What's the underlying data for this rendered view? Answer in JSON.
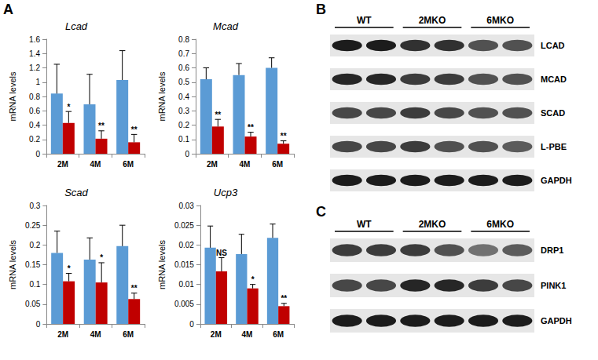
{
  "chart_data": [
    {
      "type": "bar",
      "title": "Lcad",
      "ylabel": "mRNA levels",
      "categories": [
        "2M",
        "4M",
        "6M"
      ],
      "ylim": [
        0,
        1.6
      ],
      "yticks": [
        0,
        0.2,
        0.4,
        0.6,
        0.8,
        1,
        1.2,
        1.4,
        1.6
      ],
      "grid": false,
      "series": [
        {
          "color": "#5b9bd5",
          "values": [
            0.84,
            0.69,
            1.03
          ],
          "errors": [
            0.41,
            0.42,
            0.41
          ]
        },
        {
          "color": "#c00000",
          "values": [
            0.43,
            0.21,
            0.16
          ],
          "errors": [
            0.16,
            0.11,
            0.11
          ],
          "annotations": [
            "*",
            "**",
            "**"
          ]
        }
      ]
    },
    {
      "type": "bar",
      "title": "Mcad",
      "ylabel": "mRNA levels",
      "categories": [
        "2M",
        "4M",
        "6M"
      ],
      "ylim": [
        0,
        0.8
      ],
      "yticks": [
        0,
        0.1,
        0.2,
        0.3,
        0.4,
        0.5,
        0.6,
        0.7,
        0.8
      ],
      "grid": false,
      "series": [
        {
          "color": "#5b9bd5",
          "values": [
            0.52,
            0.55,
            0.6
          ],
          "errors": [
            0.08,
            0.08,
            0.07
          ]
        },
        {
          "color": "#c00000",
          "values": [
            0.19,
            0.12,
            0.07
          ],
          "errors": [
            0.05,
            0.03,
            0.02
          ],
          "annotations": [
            "**",
            "**",
            "**"
          ]
        }
      ]
    },
    {
      "type": "bar",
      "title": "Scad",
      "ylabel": "mRNA levels",
      "categories": [
        "2M",
        "4M",
        "6M"
      ],
      "ylim": [
        0,
        0.3
      ],
      "yticks": [
        0,
        0.05,
        0.1,
        0.15,
        0.2,
        0.25,
        0.3
      ],
      "grid": false,
      "series": [
        {
          "color": "#5b9bd5",
          "values": [
            0.18,
            0.163,
            0.197
          ],
          "errors": [
            0.055,
            0.055,
            0.053
          ]
        },
        {
          "color": "#c00000",
          "values": [
            0.108,
            0.105,
            0.063
          ],
          "errors": [
            0.02,
            0.05,
            0.015
          ],
          "annotations": [
            "*",
            "*",
            "**"
          ]
        }
      ]
    },
    {
      "type": "bar",
      "title": "Ucp3",
      "ylabel": "mRNA levels",
      "categories": [
        "2M",
        "4M",
        "6M"
      ],
      "ylim": [
        0,
        0.03
      ],
      "yticks": [
        0,
        0.005,
        0.01,
        0.015,
        0.02,
        0.025,
        0.03
      ],
      "grid": false,
      "series": [
        {
          "color": "#5b9bd5",
          "values": [
            0.0193,
            0.0177,
            0.0218
          ],
          "errors": [
            0.0055,
            0.005,
            0.0035
          ]
        },
        {
          "color": "#c00000",
          "values": [
            0.0133,
            0.009,
            0.0045
          ],
          "errors": [
            0.0035,
            0.001,
            0.0007
          ],
          "annotations": [
            "NS",
            "*",
            "**"
          ]
        }
      ]
    }
  ],
  "panel_labels": [
    "A",
    "B",
    "C"
  ],
  "blots": [
    {
      "groups": [
        "WT",
        "2MKO",
        "6MKO"
      ],
      "rows": [
        {
          "label": "LCAD",
          "band_intensity": [
            0.95,
            0.95,
            0.85,
            0.85,
            0.7,
            0.7
          ]
        },
        {
          "label": "MCAD",
          "band_intensity": [
            0.9,
            0.9,
            0.8,
            0.8,
            0.7,
            0.7
          ]
        },
        {
          "label": "SCAD",
          "band_intensity": [
            0.75,
            0.75,
            0.8,
            0.75,
            0.7,
            0.7
          ]
        },
        {
          "label": "L-PBE",
          "band_intensity": [
            0.75,
            0.75,
            0.8,
            0.7,
            0.7,
            0.65
          ]
        },
        {
          "label": "GAPDH",
          "band_intensity": [
            0.95,
            0.95,
            0.95,
            0.95,
            0.95,
            0.95
          ]
        }
      ]
    },
    {
      "groups": [
        "WT",
        "2MKO",
        "6MKO"
      ],
      "rows": [
        {
          "label": "DRP1",
          "band_intensity": [
            0.8,
            0.8,
            0.8,
            0.7,
            0.55,
            0.65
          ]
        },
        {
          "label": "PINK1",
          "band_intensity": [
            0.75,
            0.75,
            0.9,
            0.9,
            0.8,
            0.75
          ]
        },
        {
          "label": "GAPDH",
          "band_intensity": [
            0.95,
            0.95,
            0.95,
            0.95,
            0.95,
            0.95
          ]
        }
      ]
    }
  ]
}
